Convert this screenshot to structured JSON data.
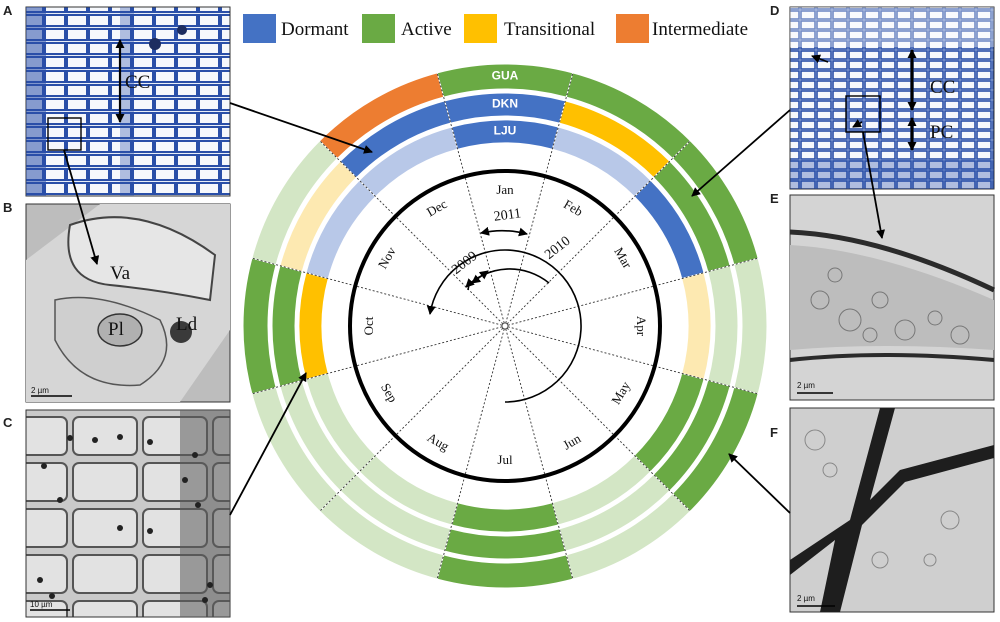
{
  "legend": [
    {
      "label": "Dormant",
      "color": "#4472c4"
    },
    {
      "label": "Active",
      "color": "#6aaa44"
    },
    {
      "label": "Transitional",
      "color": "#ffc000"
    },
    {
      "label": "Intermediate",
      "color": "#ed7d31"
    }
  ],
  "faded_colors": {
    "Dormant": "#b8c8e8",
    "Active": "#d3e6c5",
    "Transitional": "#fde9b1"
  },
  "sites": [
    "GUA",
    "DKN",
    "LJU"
  ],
  "months": [
    "Jan",
    "Feb",
    "Mar",
    "Apr",
    "May",
    "Jun",
    "Jul",
    "Aug",
    "Sep",
    "Oct",
    "Nov",
    "Dec"
  ],
  "years": [
    "2009",
    "2010",
    "2011"
  ],
  "ring_states": {
    "GUA": [
      {
        "month": "Jan",
        "state": "Active",
        "emphasis": true
      },
      {
        "month": "Feb",
        "state": "Active",
        "emphasis": true
      },
      {
        "month": "Mar",
        "state": "Active",
        "emphasis": true
      },
      {
        "month": "Apr",
        "state": "Active",
        "emphasis": false
      },
      {
        "month": "May",
        "state": "Active",
        "emphasis": true
      },
      {
        "month": "Jun",
        "state": "Active",
        "emphasis": false
      },
      {
        "month": "Jul",
        "state": "Active",
        "emphasis": true
      },
      {
        "month": "Aug",
        "state": "Active",
        "emphasis": false
      },
      {
        "month": "Sep",
        "state": "Active",
        "emphasis": false
      },
      {
        "month": "Oct",
        "state": "Active",
        "emphasis": true
      },
      {
        "month": "Nov",
        "state": "Active",
        "emphasis": false
      },
      {
        "month": "Dec",
        "state": "Intermediate",
        "emphasis": true
      }
    ],
    "DKN": [
      {
        "month": "Jan",
        "state": "Dormant",
        "emphasis": true
      },
      {
        "month": "Feb",
        "state": "Transitional",
        "emphasis": true
      },
      {
        "month": "Mar",
        "state": "Active",
        "emphasis": true
      },
      {
        "month": "Apr",
        "state": "Active",
        "emphasis": false
      },
      {
        "month": "May",
        "state": "Active",
        "emphasis": true
      },
      {
        "month": "Jun",
        "state": "Active",
        "emphasis": false
      },
      {
        "month": "Jul",
        "state": "Active",
        "emphasis": true
      },
      {
        "month": "Aug",
        "state": "Active",
        "emphasis": false
      },
      {
        "month": "Sep",
        "state": "Active",
        "emphasis": false
      },
      {
        "month": "Oct",
        "state": "Active",
        "emphasis": true
      },
      {
        "month": "Nov",
        "state": "Transitional",
        "emphasis": false
      },
      {
        "month": "Dec",
        "state": "Dormant",
        "emphasis": true
      }
    ],
    "LJU": [
      {
        "month": "Jan",
        "state": "Dormant",
        "emphasis": true
      },
      {
        "month": "Feb",
        "state": "Dormant",
        "emphasis": false
      },
      {
        "month": "Mar",
        "state": "Dormant",
        "emphasis": true
      },
      {
        "month": "Apr",
        "state": "Transitional",
        "emphasis": false
      },
      {
        "month": "May",
        "state": "Active",
        "emphasis": true
      },
      {
        "month": "Jun",
        "state": "Active",
        "emphasis": false
      },
      {
        "month": "Jul",
        "state": "Active",
        "emphasis": true
      },
      {
        "month": "Aug",
        "state": "Active",
        "emphasis": false
      },
      {
        "month": "Sep",
        "state": "Active",
        "emphasis": false
      },
      {
        "month": "Oct",
        "state": "Transitional",
        "emphasis": true
      },
      {
        "month": "Nov",
        "state": "Dormant",
        "emphasis": false
      },
      {
        "month": "Dec",
        "state": "Dormant",
        "emphasis": false
      }
    ]
  },
  "panels": [
    {
      "letter": "A",
      "labels": [
        "CC"
      ],
      "scale": ""
    },
    {
      "letter": "B",
      "labels": [
        "Va",
        "Pl",
        "Ld"
      ],
      "scale": "2 µm"
    },
    {
      "letter": "C",
      "labels": [],
      "scale": "10 µm"
    },
    {
      "letter": "D",
      "labels": [
        "CC",
        "PC"
      ],
      "scale": ""
    },
    {
      "letter": "E",
      "labels": [],
      "scale": "2 µm"
    },
    {
      "letter": "F",
      "labels": [],
      "scale": "2 µm"
    }
  ]
}
